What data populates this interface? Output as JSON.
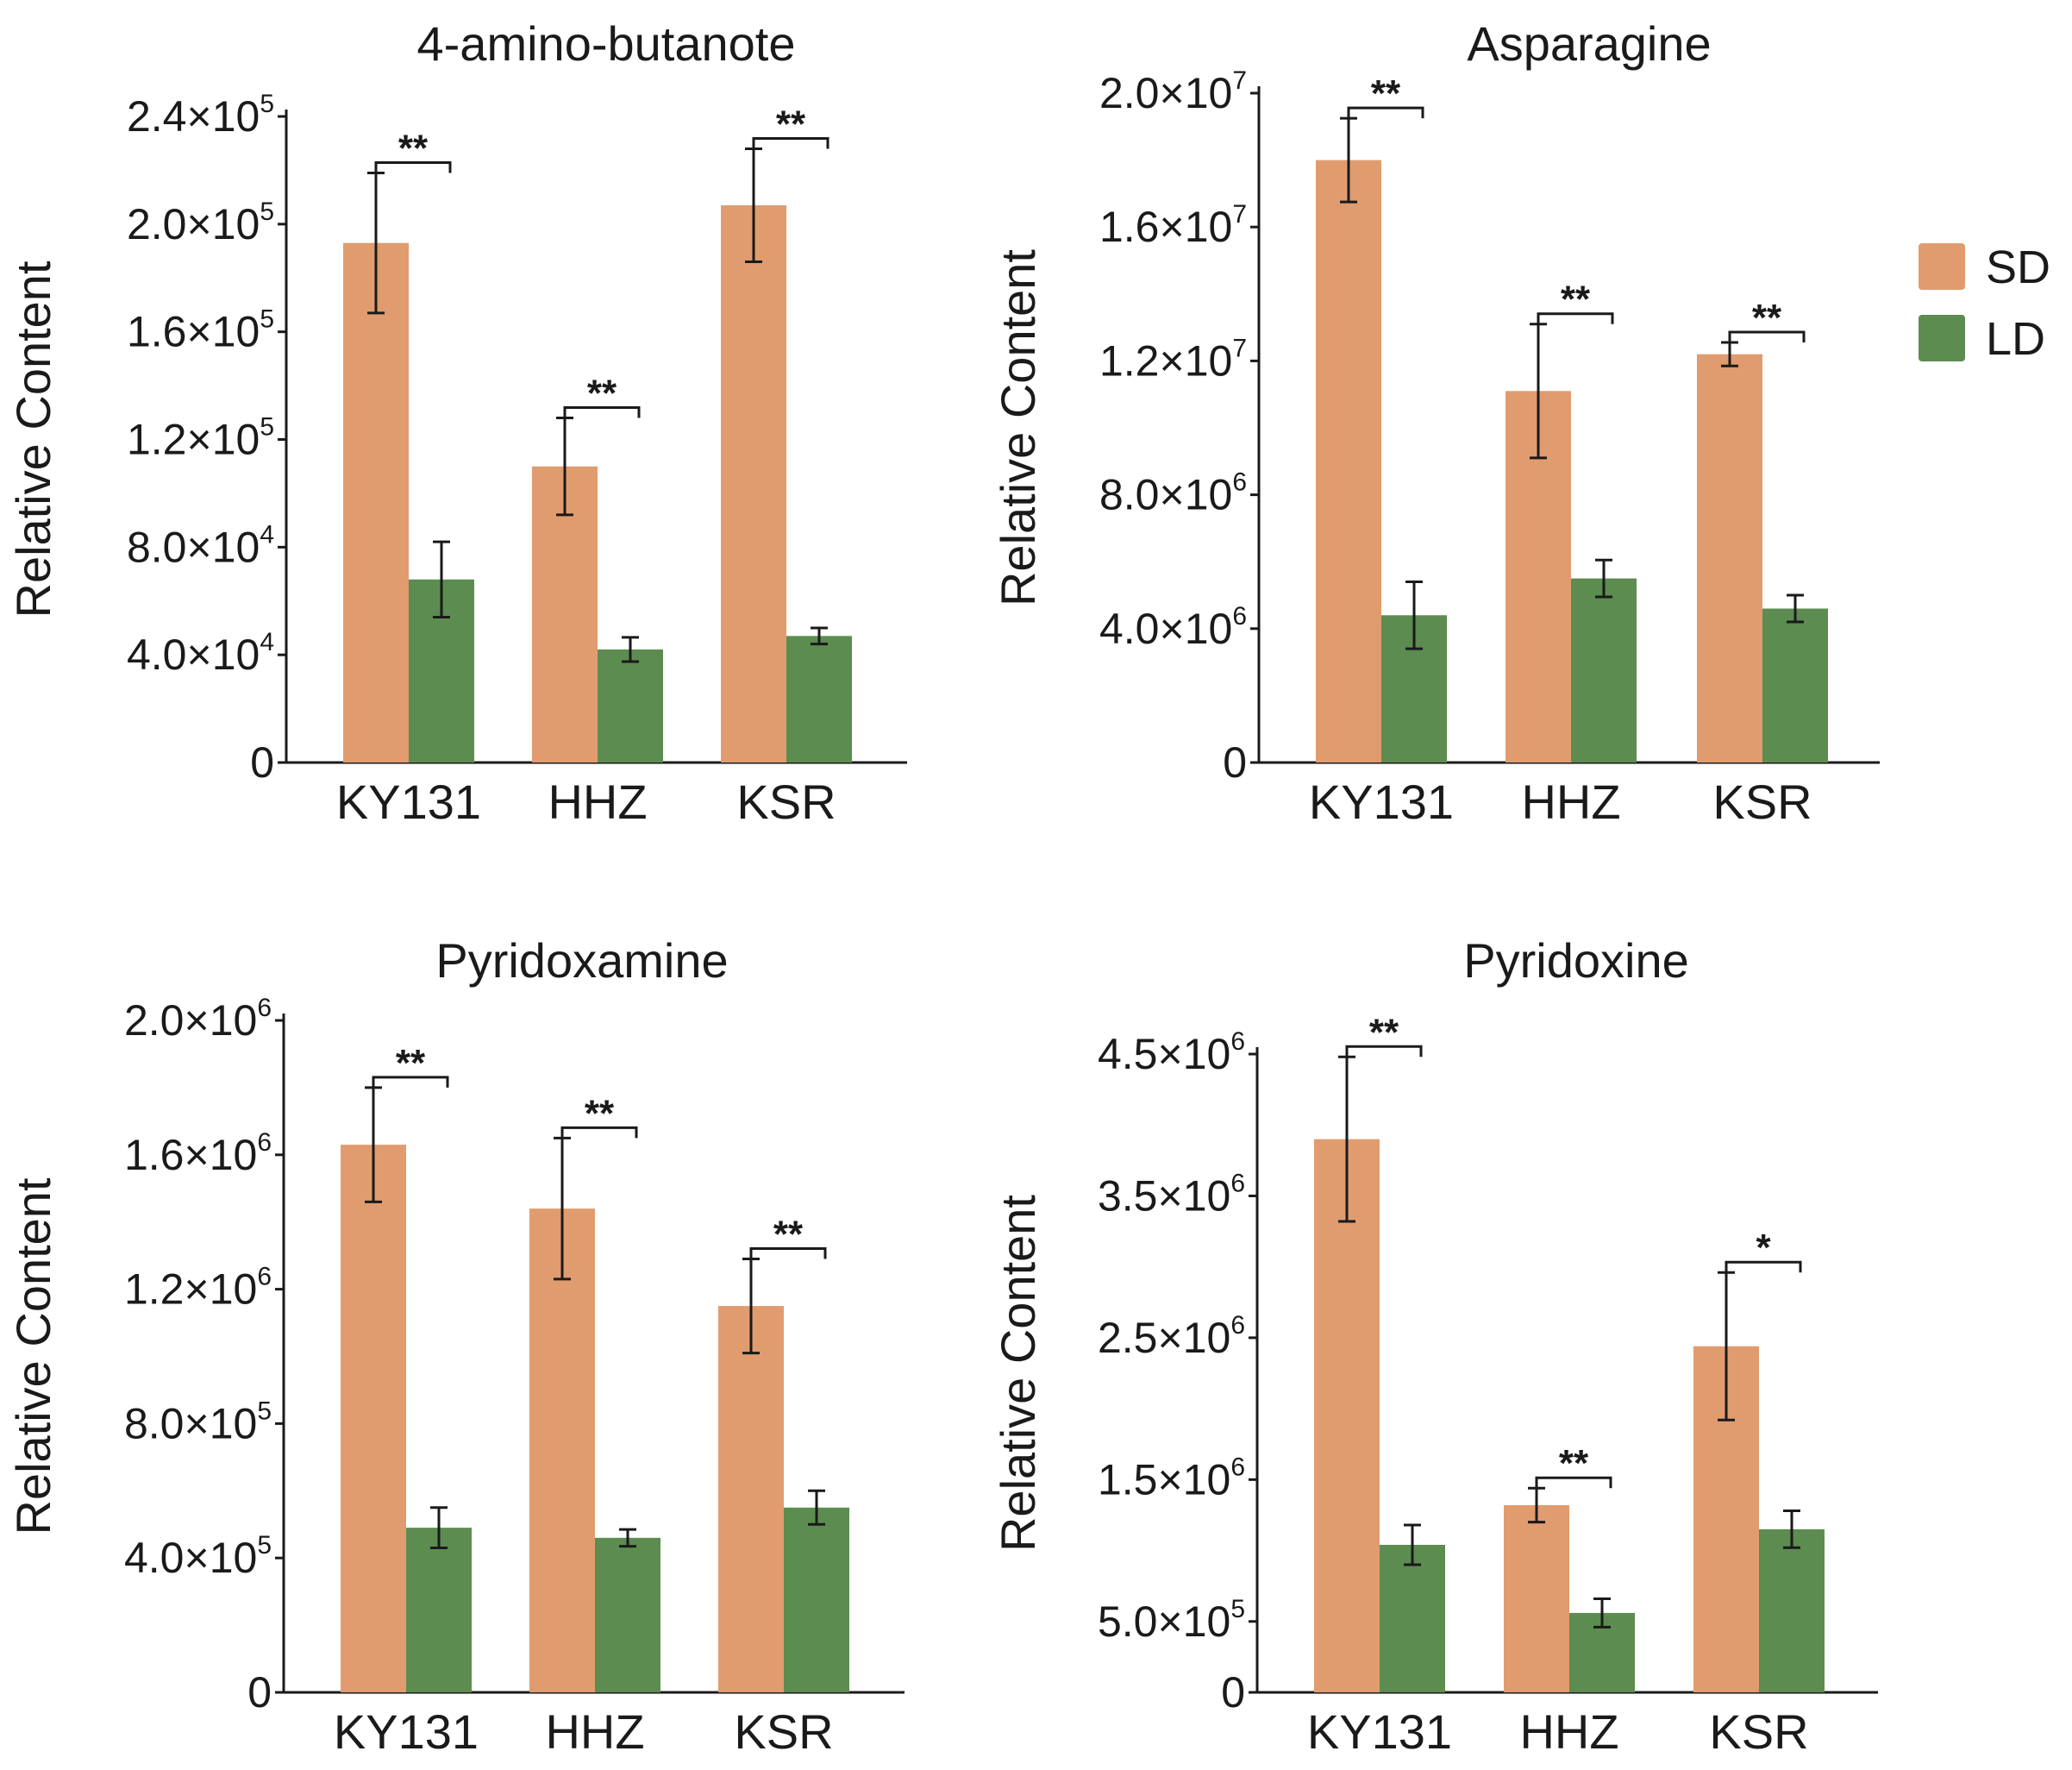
{
  "legend": [
    {
      "label": "SD",
      "color": "#E09C6F"
    },
    {
      "label": "LD",
      "color": "#5C8C50"
    }
  ],
  "chart_data": [
    {
      "type": "bar",
      "title": "4-amino-butanote",
      "ylabel": "Relative Content",
      "xlabel": "",
      "categories": [
        "KY131",
        "HHZ",
        "KSR"
      ],
      "ylim": [
        0,
        240000
      ],
      "yticks": [
        {
          "value": 0,
          "mantissa": "0",
          "exp": ""
        },
        {
          "value": 40000,
          "mantissa": "4.0×10",
          "exp": "4"
        },
        {
          "value": 80000,
          "mantissa": "8.0×10",
          "exp": "4"
        },
        {
          "value": 120000,
          "mantissa": "1.2×10",
          "exp": "5"
        },
        {
          "value": 160000,
          "mantissa": "1.6×10",
          "exp": "5"
        },
        {
          "value": 200000,
          "mantissa": "2.0×10",
          "exp": "5"
        },
        {
          "value": 240000,
          "mantissa": "2.4×10",
          "exp": "5"
        }
      ],
      "series": [
        {
          "name": "SD",
          "values": [
            193000,
            110000,
            207000
          ],
          "errors": [
            26000,
            18000,
            21000
          ]
        },
        {
          "name": "LD",
          "values": [
            68000,
            42000,
            47000
          ],
          "errors": [
            14000,
            4500,
            3000
          ]
        }
      ],
      "significance": [
        "**",
        "**",
        "**"
      ]
    },
    {
      "type": "bar",
      "title": "Asparagine",
      "ylabel": "Relative Content",
      "xlabel": "",
      "categories": [
        "KY131",
        "HHZ",
        "KSR"
      ],
      "ylim": [
        0,
        20000000
      ],
      "yticks": [
        {
          "value": 0,
          "mantissa": "0",
          "exp": ""
        },
        {
          "value": 4000000,
          "mantissa": "4.0×10",
          "exp": "6"
        },
        {
          "value": 8000000,
          "mantissa": "8.0×10",
          "exp": "6"
        },
        {
          "value": 12000000,
          "mantissa": "1.2×10",
          "exp": "7"
        },
        {
          "value": 16000000,
          "mantissa": "1.6×10",
          "exp": "7"
        },
        {
          "value": 20000000,
          "mantissa": "2.0×10",
          "exp": "7"
        }
      ],
      "series": [
        {
          "name": "SD",
          "values": [
            18000000,
            11100000,
            12200000
          ],
          "errors": [
            1250000,
            2000000,
            350000
          ]
        },
        {
          "name": "LD",
          "values": [
            4400000,
            5500000,
            4600000
          ],
          "errors": [
            1000000,
            550000,
            400000
          ]
        }
      ],
      "significance": [
        "**",
        "**",
        "**"
      ]
    },
    {
      "type": "bar",
      "title": "Pyridoxamine",
      "ylabel": "Relative Content",
      "xlabel": "",
      "categories": [
        "KY131",
        "HHZ",
        "KSR"
      ],
      "ylim": [
        0,
        2000000
      ],
      "yticks": [
        {
          "value": 0,
          "mantissa": "0",
          "exp": ""
        },
        {
          "value": 400000,
          "mantissa": "4.0×10",
          "exp": "5"
        },
        {
          "value": 800000,
          "mantissa": "8.0×10",
          "exp": "5"
        },
        {
          "value": 1200000,
          "mantissa": "1.2×10",
          "exp": "6"
        },
        {
          "value": 1600000,
          "mantissa": "1.6×10",
          "exp": "6"
        },
        {
          "value": 2000000,
          "mantissa": "2.0×10",
          "exp": "6"
        }
      ],
      "series": [
        {
          "name": "SD",
          "values": [
            1630000,
            1440000,
            1150000
          ],
          "errors": [
            170000,
            210000,
            140000
          ]
        },
        {
          "name": "LD",
          "values": [
            490000,
            460000,
            550000
          ],
          "errors": [
            60000,
            25000,
            50000
          ]
        }
      ],
      "significance": [
        "**",
        "**",
        "**"
      ]
    },
    {
      "type": "bar",
      "title": "Pyridoxine",
      "ylabel": "Relative Content",
      "xlabel": "",
      "categories": [
        "KY131",
        "HHZ",
        "KSR"
      ],
      "ylim": [
        0,
        4500000
      ],
      "yticks": [
        {
          "value": 0,
          "mantissa": "0",
          "exp": ""
        },
        {
          "value": 500000,
          "mantissa": "5.0×10",
          "exp": "5"
        },
        {
          "value": 1500000,
          "mantissa": "1.5×10",
          "exp": "6"
        },
        {
          "value": 2500000,
          "mantissa": "2.5×10",
          "exp": "6"
        },
        {
          "value": 3500000,
          "mantissa": "3.5×10",
          "exp": "6"
        },
        {
          "value": 4500000,
          "mantissa": "4.5×10",
          "exp": "6"
        }
      ],
      "series": [
        {
          "name": "SD",
          "values": [
            3900000,
            1320000,
            2440000
          ],
          "errors": [
            580000,
            120000,
            520000
          ]
        },
        {
          "name": "LD",
          "values": [
            1040000,
            560000,
            1150000
          ],
          "errors": [
            140000,
            100000,
            130000
          ]
        }
      ],
      "significance": [
        "**",
        "**",
        "*"
      ]
    }
  ]
}
